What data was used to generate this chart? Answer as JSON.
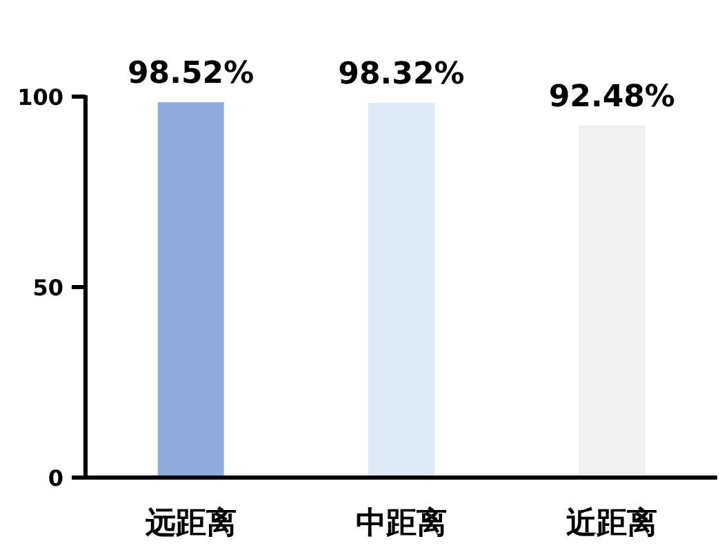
{
  "chart_data": {
    "type": "bar",
    "categories": [
      "远距离",
      "中距离",
      "近距离"
    ],
    "values": [
      98.52,
      98.32,
      92.48
    ],
    "colors": [
      "#8faadc",
      "#dde9f5",
      "#f0f0f0"
    ],
    "ylim": [
      0,
      100
    ],
    "yticks": [
      0,
      50,
      100
    ],
    "value_labels": [
      "98.52%",
      "98.32%",
      "92.48%"
    ]
  }
}
